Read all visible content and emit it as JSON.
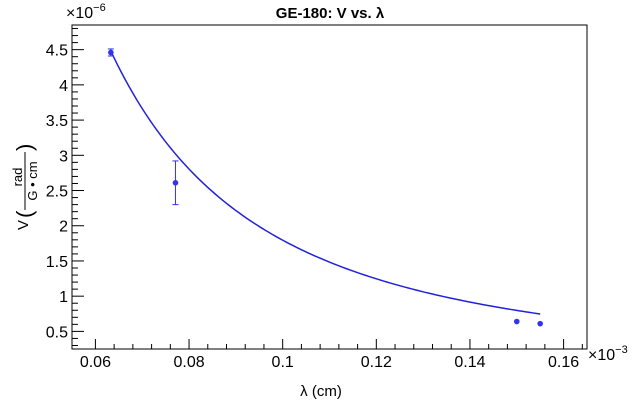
{
  "chart_data": {
    "type": "scatter",
    "title": "GE-180: V vs. λ",
    "xlabel": "λ (cm)",
    "ylabel": {
      "prefix": "V",
      "numerator": "rad",
      "denominator": "G • cm"
    },
    "x_multiplier": "×10",
    "x_multiplier_exp": "−3",
    "y_multiplier": "×10",
    "y_multiplier_exp": "−6",
    "xlim": [
      0.055,
      0.165
    ],
    "ylim": [
      0.25,
      4.85
    ],
    "x_ticks": [
      "0.06",
      "0.08",
      "0.1",
      "0.12",
      "0.14",
      "0.16"
    ],
    "y_ticks": [
      "0.5",
      "1",
      "1.5",
      "2",
      "2.5",
      "3",
      "3.5",
      "4",
      "4.5"
    ],
    "points": [
      {
        "x": 0.0633,
        "y": 4.46,
        "yerr": 0.05
      },
      {
        "x": 0.0771,
        "y": 2.61,
        "yerr": 0.31
      },
      {
        "x": 0.15,
        "y": 0.64,
        "yerr": 0.0
      },
      {
        "x": 0.155,
        "y": 0.61,
        "yerr": 0.0
      }
    ],
    "fit": {
      "model": "y = a / x^2",
      "a": 0.01795,
      "x_range": [
        0.0633,
        0.155
      ]
    },
    "marker_color": "#3333ee",
    "fit_color": "#2222dd",
    "grid": false
  }
}
